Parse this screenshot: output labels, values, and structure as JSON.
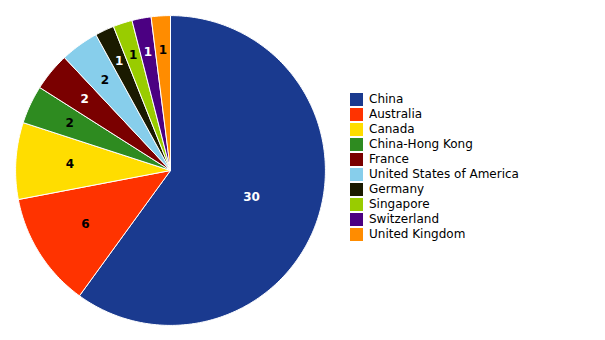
{
  "chart_data": {
    "type": "pie",
    "categories": [
      "China",
      "Australia",
      "Canada",
      "China-Hong Kong",
      "France",
      "United States of America",
      "Germany",
      "Singapore",
      "Switzerland",
      "United Kingdom"
    ],
    "values": [
      30,
      6,
      4,
      2,
      2,
      2,
      1,
      1,
      1,
      1
    ],
    "colors": [
      "#1a3a8f",
      "#ff3300",
      "#ffdd00",
      "#2e8b20",
      "#7a0000",
      "#87ceeb",
      "#1a1a00",
      "#99cc00",
      "#4b0082",
      "#ff8c00"
    ],
    "data_labels": true,
    "legend": "right"
  }
}
